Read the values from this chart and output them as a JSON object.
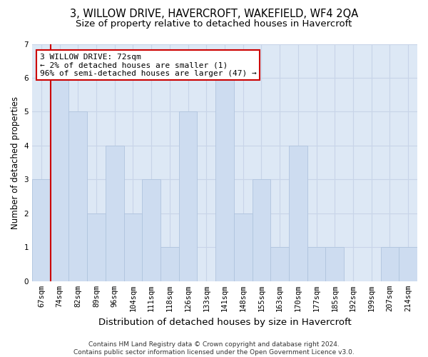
{
  "title": "3, WILLOW DRIVE, HAVERCROFT, WAKEFIELD, WF4 2QA",
  "subtitle": "Size of property relative to detached houses in Havercroft",
  "xlabel": "Distribution of detached houses by size in Havercroft",
  "ylabel": "Number of detached properties",
  "categories": [
    "67sqm",
    "74sqm",
    "82sqm",
    "89sqm",
    "96sqm",
    "104sqm",
    "111sqm",
    "118sqm",
    "126sqm",
    "133sqm",
    "141sqm",
    "148sqm",
    "155sqm",
    "163sqm",
    "170sqm",
    "177sqm",
    "185sqm",
    "192sqm",
    "199sqm",
    "207sqm",
    "214sqm"
  ],
  "values": [
    3,
    6,
    5,
    2,
    4,
    2,
    3,
    1,
    5,
    0,
    6,
    2,
    3,
    1,
    4,
    1,
    1,
    0,
    0,
    1,
    1
  ],
  "bar_color": "#cddcf0",
  "bar_edge_color": "#b0c4de",
  "highlight_line_color": "#cc0000",
  "annotation_text": "3 WILLOW DRIVE: 72sqm\n← 2% of detached houses are smaller (1)\n96% of semi-detached houses are larger (47) →",
  "annotation_box_facecolor": "#ffffff",
  "annotation_box_edgecolor": "#cc0000",
  "ylim": [
    0,
    7
  ],
  "yticks": [
    0,
    1,
    2,
    3,
    4,
    5,
    6,
    7
  ],
  "grid_color": "#c8d4e8",
  "bg_color": "#dde8f5",
  "footer_text": "Contains HM Land Registry data © Crown copyright and database right 2024.\nContains public sector information licensed under the Open Government Licence v3.0.",
  "title_fontsize": 10.5,
  "subtitle_fontsize": 9.5,
  "xlabel_fontsize": 9.5,
  "ylabel_fontsize": 8.5,
  "tick_fontsize": 7.5,
  "annot_fontsize": 8,
  "footer_fontsize": 6.5
}
